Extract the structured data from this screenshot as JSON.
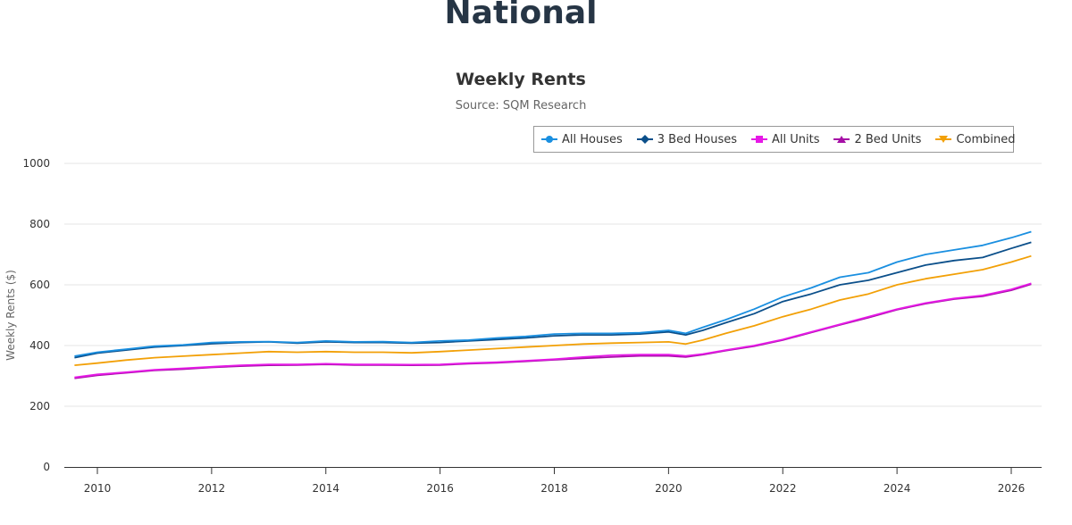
{
  "page": {
    "title": "National"
  },
  "chart_data": {
    "type": "line",
    "title": "Weekly Rents",
    "subtitle": "Source: SQM Research",
    "xlabel": "",
    "ylabel": "Weekly Rents ($)",
    "ylim": [
      0,
      1000
    ],
    "xlim": [
      2009.5,
      2026.5
    ],
    "y_ticks": [
      0,
      200,
      400,
      600,
      800,
      1000
    ],
    "x_ticks": [
      2010,
      2012,
      2014,
      2016,
      2018,
      2020,
      2022,
      2024,
      2026
    ],
    "grid": "horizontal",
    "legend_position": "top-right",
    "series": [
      {
        "name": "All Houses",
        "color": "#1a8fe0",
        "marker": "circle",
        "x": [
          2009.6,
          2010,
          2010.5,
          2011,
          2011.5,
          2012,
          2012.5,
          2013,
          2013.5,
          2014,
          2014.5,
          2015,
          2015.5,
          2016,
          2016.5,
          2017,
          2017.5,
          2018,
          2018.5,
          2019,
          2019.5,
          2020,
          2020.3,
          2020.6,
          2021,
          2021.5,
          2022,
          2022.5,
          2023,
          2023.5,
          2024,
          2024.5,
          2025,
          2025.5,
          2026,
          2026.35
        ],
        "y": [
          365,
          378,
          388,
          398,
          402,
          410,
          412,
          413,
          410,
          415,
          412,
          413,
          410,
          415,
          418,
          425,
          430,
          438,
          440,
          440,
          442,
          450,
          440,
          460,
          485,
          520,
          560,
          590,
          625,
          640,
          675,
          700,
          715,
          730,
          755,
          775
        ]
      },
      {
        "name": "3 Bed Houses",
        "color": "#0b4f8a",
        "marker": "diamond",
        "x": [
          2009.6,
          2010,
          2010.5,
          2011,
          2011.5,
          2012,
          2012.5,
          2013,
          2013.5,
          2014,
          2014.5,
          2015,
          2015.5,
          2016,
          2016.5,
          2017,
          2017.5,
          2018,
          2018.5,
          2019,
          2019.5,
          2020,
          2020.3,
          2020.6,
          2021,
          2021.5,
          2022,
          2022.5,
          2023,
          2023.5,
          2024,
          2024.5,
          2025,
          2025.5,
          2026,
          2026.35
        ],
        "y": [
          360,
          375,
          385,
          395,
          400,
          406,
          410,
          412,
          408,
          412,
          410,
          410,
          408,
          410,
          415,
          420,
          425,
          432,
          435,
          435,
          438,
          445,
          435,
          450,
          475,
          505,
          545,
          570,
          600,
          615,
          640,
          665,
          680,
          690,
          720,
          740
        ]
      },
      {
        "name": "All Units",
        "color": "#e619e6",
        "marker": "square",
        "x": [
          2009.6,
          2010,
          2010.5,
          2011,
          2011.5,
          2012,
          2012.5,
          2013,
          2013.5,
          2014,
          2014.5,
          2015,
          2015.5,
          2016,
          2016.5,
          2017,
          2017.5,
          2018,
          2018.5,
          2019,
          2019.5,
          2020,
          2020.3,
          2020.6,
          2021,
          2021.5,
          2022,
          2022.5,
          2023,
          2023.5,
          2024,
          2024.5,
          2025,
          2025.5,
          2026,
          2026.35
        ],
        "y": [
          295,
          305,
          312,
          320,
          325,
          330,
          335,
          338,
          338,
          340,
          338,
          338,
          337,
          338,
          342,
          345,
          350,
          355,
          362,
          368,
          370,
          370,
          366,
          372,
          385,
          400,
          420,
          445,
          470,
          495,
          520,
          540,
          555,
          565,
          585,
          605
        ]
      },
      {
        "name": "2 Bed Units",
        "color": "#a60fa6",
        "marker": "triangle",
        "x": [
          2009.6,
          2010,
          2010.5,
          2011,
          2011.5,
          2012,
          2012.5,
          2013,
          2013.5,
          2014,
          2014.5,
          2015,
          2015.5,
          2016,
          2016.5,
          2017,
          2017.5,
          2018,
          2018.5,
          2019,
          2019.5,
          2020,
          2020.3,
          2020.6,
          2021,
          2021.5,
          2022,
          2022.5,
          2023,
          2023.5,
          2024,
          2024.5,
          2025,
          2025.5,
          2026,
          2026.35
        ],
        "y": [
          292,
          302,
          310,
          318,
          322,
          328,
          332,
          335,
          336,
          338,
          336,
          336,
          335,
          336,
          340,
          343,
          348,
          353,
          358,
          362,
          366,
          366,
          362,
          370,
          383,
          398,
          418,
          443,
          468,
          492,
          518,
          538,
          553,
          562,
          582,
          602
        ]
      },
      {
        "name": "Combined",
        "color": "#f2a007",
        "marker": "triangle-down",
        "x": [
          2009.6,
          2010,
          2010.5,
          2011,
          2011.5,
          2012,
          2012.5,
          2013,
          2013.5,
          2014,
          2014.5,
          2015,
          2015.5,
          2016,
          2016.5,
          2017,
          2017.5,
          2018,
          2018.5,
          2019,
          2019.5,
          2020,
          2020.3,
          2020.6,
          2021,
          2021.5,
          2022,
          2022.5,
          2023,
          2023.5,
          2024,
          2024.5,
          2025,
          2025.5,
          2026,
          2026.35
        ],
        "y": [
          335,
          342,
          352,
          360,
          365,
          370,
          375,
          380,
          378,
          380,
          378,
          378,
          376,
          380,
          385,
          390,
          395,
          400,
          405,
          408,
          410,
          412,
          405,
          418,
          440,
          465,
          495,
          520,
          550,
          570,
          600,
          620,
          635,
          650,
          675,
          695
        ]
      }
    ]
  }
}
